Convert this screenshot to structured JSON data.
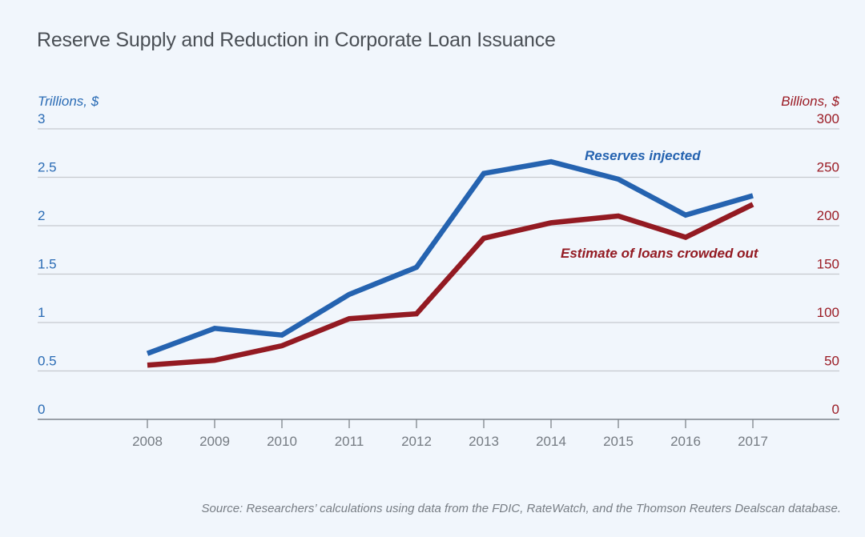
{
  "chart_data": {
    "type": "line",
    "title": "Reserve Supply and Reduction in Corporate Loan Issuance",
    "source": "Source: Researchers’ calculations using data from the FDIC, RateWatch, and the Thomson Reuters Dealscan database.",
    "x": [
      "2008",
      "2009",
      "2010",
      "2011",
      "2012",
      "2013",
      "2014",
      "2015",
      "2016",
      "2017"
    ],
    "left_axis": {
      "label": "Trillions, $",
      "ylim": [
        0,
        3
      ],
      "ticks": [
        "0",
        "0.5",
        "1",
        "1.5",
        "2",
        "2.5",
        "3"
      ],
      "color": "#2b6cb5"
    },
    "right_axis": {
      "label": "Billions, $",
      "ylim": [
        0,
        300
      ],
      "ticks": [
        "0",
        "50",
        "100",
        "150",
        "200",
        "250",
        "300"
      ],
      "color": "#9b1c25"
    },
    "series": [
      {
        "name": "Reserves injected",
        "axis": "left",
        "color": "#2563b0",
        "values": [
          0.68,
          0.94,
          0.87,
          1.29,
          1.57,
          2.54,
          2.66,
          2.48,
          2.11,
          2.31
        ]
      },
      {
        "name": "Estimate of loans crowded out",
        "axis": "right",
        "color": "#931a22",
        "values": [
          56,
          61,
          76,
          104,
          109,
          187,
          203,
          210,
          188,
          222
        ]
      }
    ],
    "grid": true,
    "legend": "inline-labels"
  }
}
